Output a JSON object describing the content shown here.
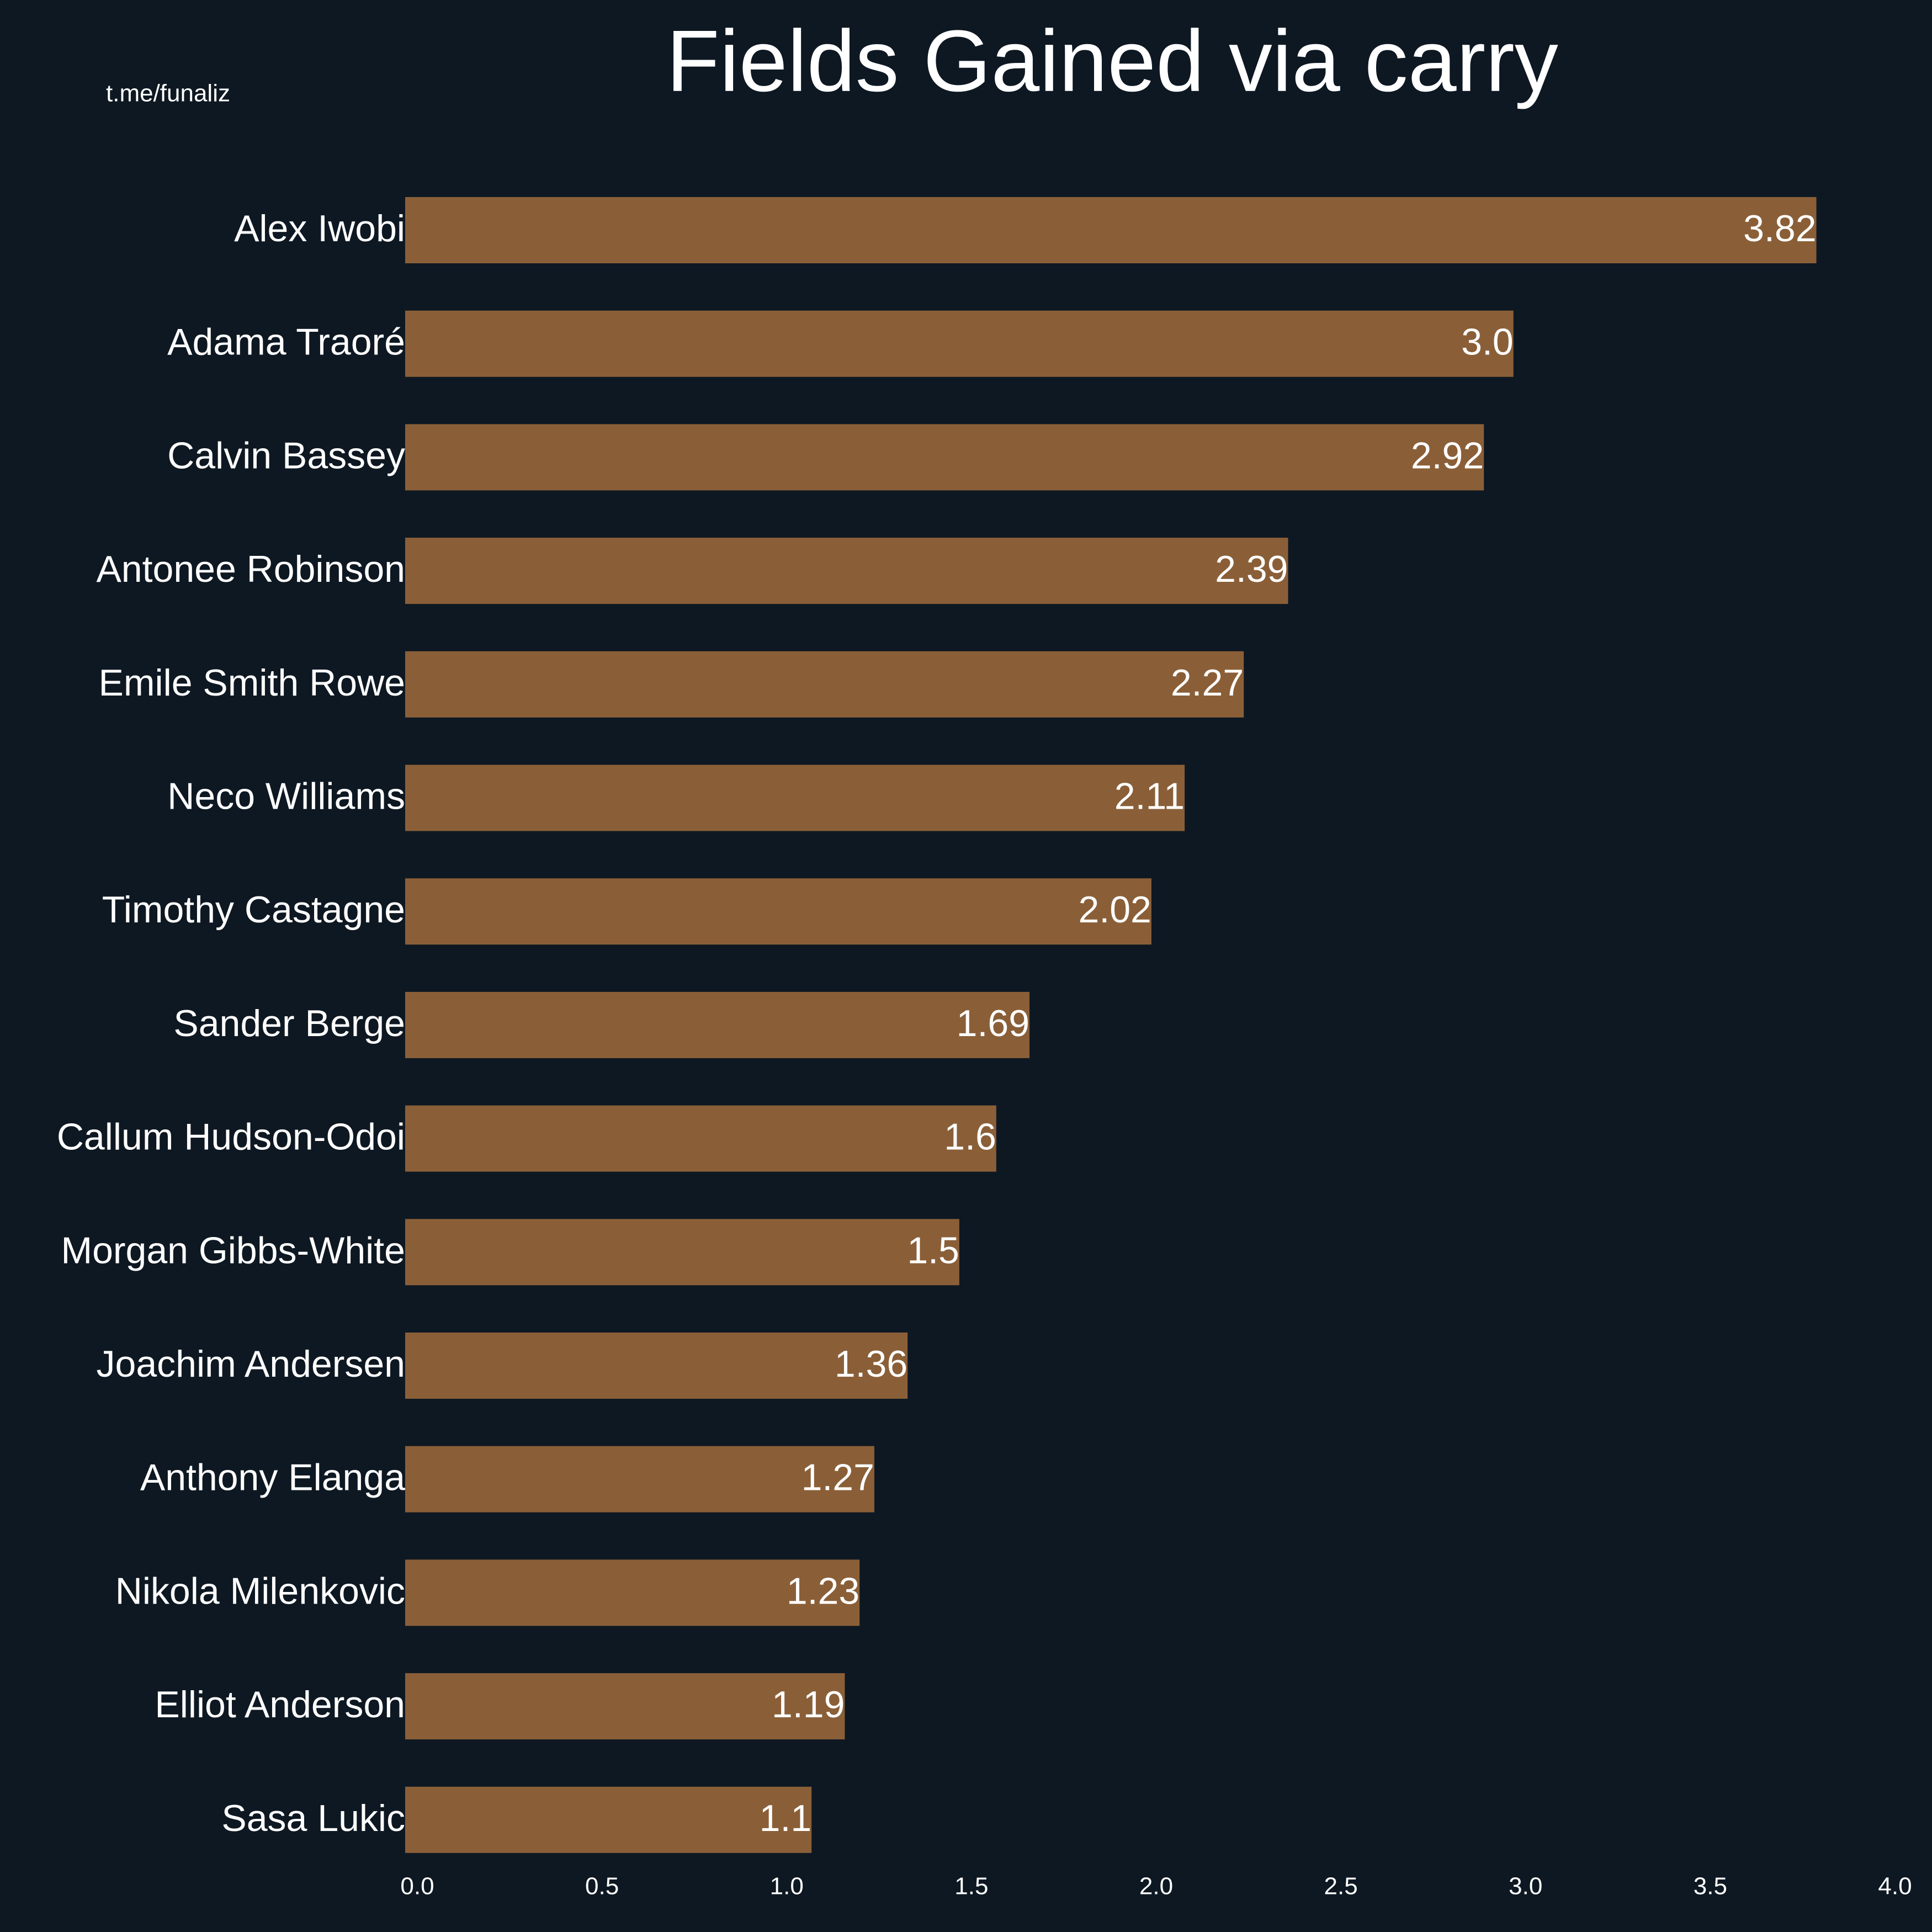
{
  "chart_data": {
    "type": "barh",
    "title": "Fields Gained via carry",
    "annotations": [
      "t.me/funaliz"
    ],
    "categories": [
      "Alex Iwobi",
      "Adama Traoré",
      "Calvin Bassey",
      "Antonee Robinson",
      "Emile Smith Rowe",
      "Neco Williams",
      "Timothy Castagne",
      "Sander Berge",
      "Callum Hudson-Odoi",
      "Morgan Gibbs-White",
      "Joachim Andersen",
      "Anthony Elanga",
      "Nikola Milenkovic",
      "Elliot Anderson",
      "Sasa Lukic"
    ],
    "values": [
      3.82,
      3.0,
      2.92,
      2.39,
      2.27,
      2.11,
      2.02,
      1.69,
      1.6,
      1.5,
      1.36,
      1.27,
      1.23,
      1.19,
      1.1
    ],
    "value_labels": [
      "3.82",
      "3.0",
      "2.92",
      "2.39",
      "2.27",
      "2.11",
      "2.02",
      "1.69",
      "1.6",
      "1.5",
      "1.36",
      "1.27",
      "1.23",
      "1.19",
      "1.1"
    ],
    "color": "#8a5f38",
    "xlim": [
      0,
      4
    ],
    "xticks": [
      {
        "value": 0,
        "label": "0.0"
      },
      0.5,
      {
        "value": 1,
        "label": "1.0"
      },
      1.5,
      {
        "value": 2,
        "label": "2.0"
      },
      2.5,
      {
        "value": 3,
        "label": "3.0"
      },
      3.5,
      {
        "value": 4,
        "label": "4.0"
      }
    ],
    "grid": false
  }
}
